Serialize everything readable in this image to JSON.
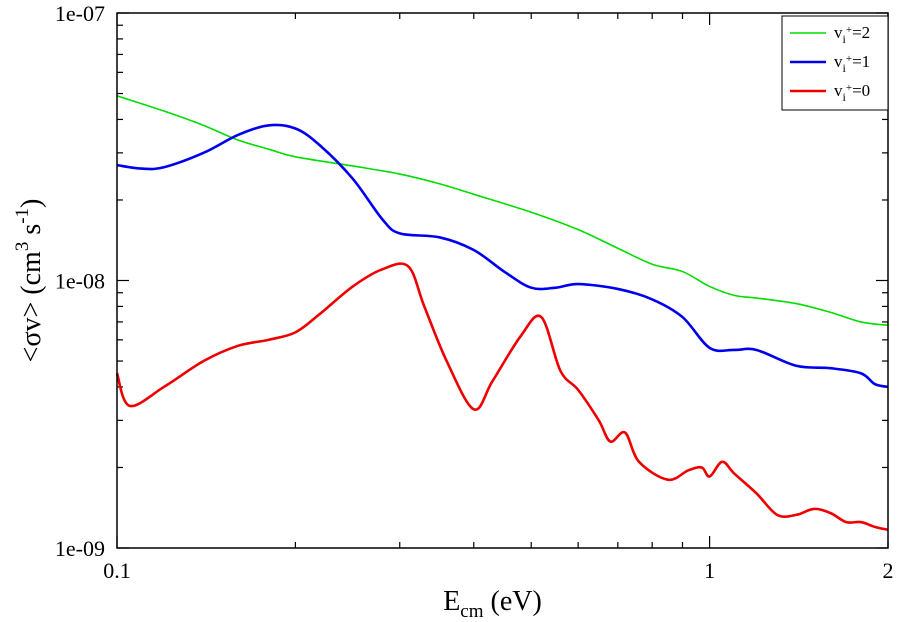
{
  "chart_data": {
    "type": "line",
    "x_scale": "log",
    "y_scale": "log",
    "xlim": [
      0.1,
      2
    ],
    "ylim": [
      1e-09,
      1e-07
    ],
    "x_ticks": [
      {
        "value": 0.1,
        "label": "0.1"
      },
      {
        "value": 1,
        "label": "1"
      },
      {
        "value": 2,
        "label": "2"
      }
    ],
    "y_ticks": [
      {
        "value": 1e-09,
        "label": "1e-09"
      },
      {
        "value": 1e-08,
        "label": "1e-08"
      },
      {
        "value": 1e-07,
        "label": "1e-07"
      }
    ],
    "xlabel": {
      "main": "E",
      "sub": "cm",
      "rest": " (eV)"
    },
    "ylabel": {
      "part1": "<σv> (cm",
      "sup1": "3",
      "part2": " s",
      "sup2": "-1",
      "part3": ")"
    },
    "legend": {
      "position": "top-right"
    },
    "series": [
      {
        "name": "vi+=2",
        "label_main": "v",
        "label_sub": "i",
        "label_sup": "+",
        "label_value": "=2",
        "color": "#00dd00",
        "points": [
          [
            0.1,
            4.9e-08
          ],
          [
            0.12,
            4.3e-08
          ],
          [
            0.14,
            3.8e-08
          ],
          [
            0.16,
            3.35e-08
          ],
          [
            0.18,
            3.1e-08
          ],
          [
            0.2,
            2.9e-08
          ],
          [
            0.25,
            2.68e-08
          ],
          [
            0.3,
            2.5e-08
          ],
          [
            0.35,
            2.3e-08
          ],
          [
            0.4,
            2.1e-08
          ],
          [
            0.5,
            1.8e-08
          ],
          [
            0.6,
            1.55e-08
          ],
          [
            0.7,
            1.32e-08
          ],
          [
            0.8,
            1.15e-08
          ],
          [
            0.9,
            1.08e-08
          ],
          [
            1.0,
            9.5e-09
          ],
          [
            1.1,
            8.8e-09
          ],
          [
            1.2,
            8.6e-09
          ],
          [
            1.4,
            8.2e-09
          ],
          [
            1.6,
            7.6e-09
          ],
          [
            1.8,
            7e-09
          ],
          [
            2.0,
            6.8e-09
          ]
        ]
      },
      {
        "name": "vi+=1",
        "label_main": "v",
        "label_sub": "i",
        "label_sup": "+",
        "label_value": "=1",
        "color": "#0000ee",
        "points": [
          [
            0.1,
            2.7e-08
          ],
          [
            0.11,
            2.62e-08
          ],
          [
            0.12,
            2.65e-08
          ],
          [
            0.14,
            3e-08
          ],
          [
            0.16,
            3.5e-08
          ],
          [
            0.18,
            3.8e-08
          ],
          [
            0.2,
            3.7e-08
          ],
          [
            0.22,
            3.2e-08
          ],
          [
            0.25,
            2.4e-08
          ],
          [
            0.28,
            1.7e-08
          ],
          [
            0.3,
            1.5e-08
          ],
          [
            0.35,
            1.45e-08
          ],
          [
            0.4,
            1.3e-08
          ],
          [
            0.45,
            1.08e-08
          ],
          [
            0.5,
            9.4e-09
          ],
          [
            0.55,
            9.4e-09
          ],
          [
            0.6,
            9.7e-09
          ],
          [
            0.7,
            9.3e-09
          ],
          [
            0.8,
            8.5e-09
          ],
          [
            0.9,
            7.3e-09
          ],
          [
            1.0,
            5.6e-09
          ],
          [
            1.1,
            5.5e-09
          ],
          [
            1.2,
            5.5e-09
          ],
          [
            1.4,
            4.8e-09
          ],
          [
            1.6,
            4.7e-09
          ],
          [
            1.8,
            4.5e-09
          ],
          [
            1.9,
            4.1e-09
          ],
          [
            2.0,
            4e-09
          ]
        ]
      },
      {
        "name": "vi+=0",
        "label_main": "v",
        "label_sub": "i",
        "label_sup": "+",
        "label_value": "=0",
        "color": "#ee0000",
        "points": [
          [
            0.1,
            4.5e-09
          ],
          [
            0.105,
            3.4e-09
          ],
          [
            0.12,
            4e-09
          ],
          [
            0.14,
            5e-09
          ],
          [
            0.16,
            5.7e-09
          ],
          [
            0.18,
            6e-09
          ],
          [
            0.2,
            6.4e-09
          ],
          [
            0.22,
            7.5e-09
          ],
          [
            0.25,
            9.5e-09
          ],
          [
            0.28,
            1.1e-08
          ],
          [
            0.31,
            1.13e-08
          ],
          [
            0.33,
            8e-09
          ],
          [
            0.36,
            5e-09
          ],
          [
            0.4,
            3.3e-09
          ],
          [
            0.43,
            4.2e-09
          ],
          [
            0.48,
            6.2e-09
          ],
          [
            0.52,
            7.3e-09
          ],
          [
            0.56,
            4.6e-09
          ],
          [
            0.6,
            3.9e-09
          ],
          [
            0.65,
            3e-09
          ],
          [
            0.68,
            2.5e-09
          ],
          [
            0.72,
            2.7e-09
          ],
          [
            0.76,
            2.1e-09
          ],
          [
            0.85,
            1.8e-09
          ],
          [
            0.92,
            1.95e-09
          ],
          [
            0.97,
            2e-09
          ],
          [
            1.0,
            1.85e-09
          ],
          [
            1.05,
            2.1e-09
          ],
          [
            1.1,
            1.9e-09
          ],
          [
            1.2,
            1.6e-09
          ],
          [
            1.3,
            1.33e-09
          ],
          [
            1.4,
            1.33e-09
          ],
          [
            1.5,
            1.4e-09
          ],
          [
            1.6,
            1.35e-09
          ],
          [
            1.7,
            1.25e-09
          ],
          [
            1.8,
            1.25e-09
          ],
          [
            1.9,
            1.2e-09
          ],
          [
            2.0,
            1.17e-09
          ]
        ]
      }
    ]
  }
}
